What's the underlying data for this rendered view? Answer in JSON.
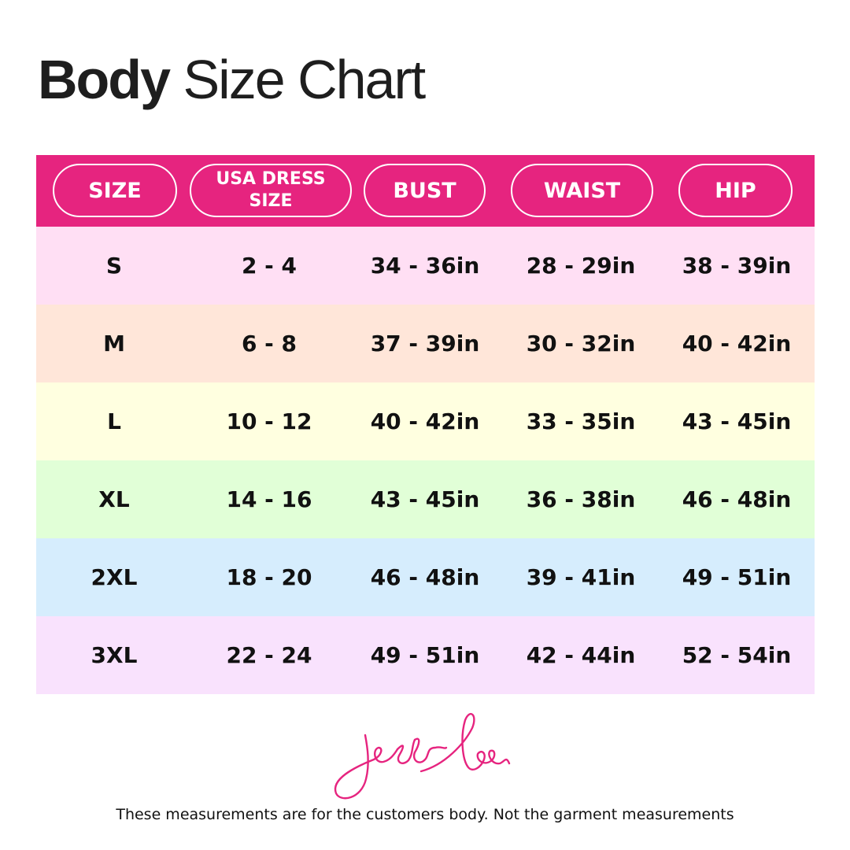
{
  "title": {
    "bold": "Body",
    "light": "Size Chart"
  },
  "colors": {
    "header": "#e6247f",
    "rows": [
      "#ffdff4",
      "#ffe6d9",
      "#ffffe0",
      "#e1ffd7",
      "#d6edfd",
      "#f9e2fd"
    ]
  },
  "columns": [
    "SIZE",
    "USA DRESS SIZE",
    "BUST",
    "WAIST",
    "HIP"
  ],
  "rows": [
    [
      "S",
      "2 - 4",
      "34 - 36in",
      "28 - 29in",
      "38 - 39in"
    ],
    [
      "M",
      "6 - 8",
      "37 - 39in",
      "30 - 32in",
      "40 - 42in"
    ],
    [
      "L",
      "10 - 12",
      "40 - 42in",
      "33 - 35in",
      "43 - 45in"
    ],
    [
      "XL",
      "14 - 16",
      "43 - 45in",
      "36 - 38in",
      "46 - 48in"
    ],
    [
      "2XL",
      "18 - 20",
      "46 - 48in",
      "39 - 41in",
      "49 - 51in"
    ],
    [
      "3XL",
      "22 - 24",
      "49 - 51in",
      "42 - 44in",
      "52 - 54in"
    ]
  ],
  "logo": "jess lea",
  "footnote": "These measurements are for the customers body. Not the garment measurements"
}
